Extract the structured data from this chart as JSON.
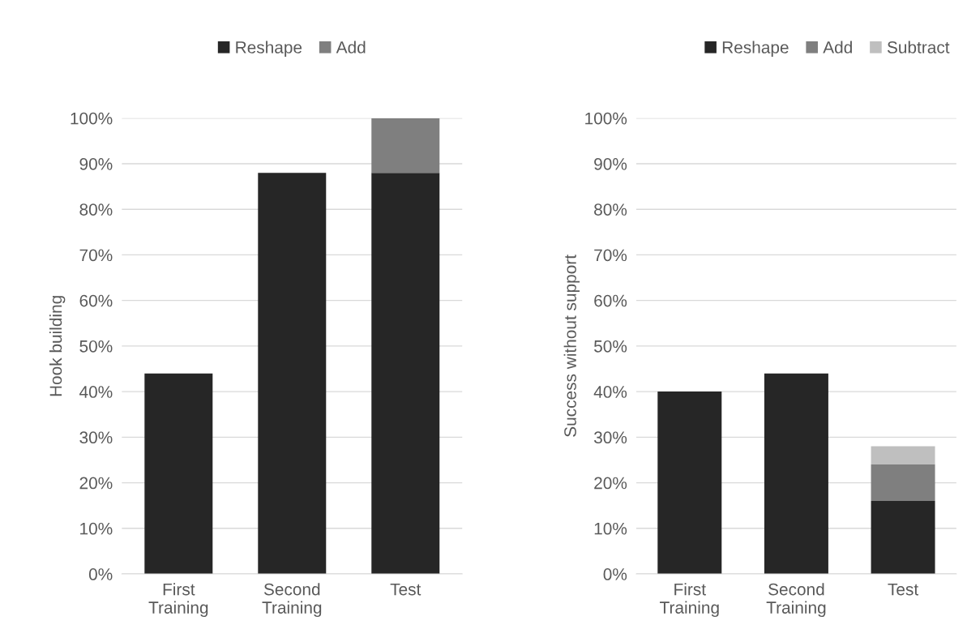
{
  "chart_data": [
    {
      "type": "bar",
      "stacked": true,
      "ylabel": "Hook building",
      "categories": [
        "First\nTraining",
        "Second\nTraining",
        "Test"
      ],
      "series": [
        {
          "name": "Reshape",
          "color": "#262626",
          "values": [
            44,
            88,
            88
          ]
        },
        {
          "name": "Add",
          "color": "#7f7f7f",
          "values": [
            null,
            null,
            12
          ]
        }
      ],
      "ylim": [
        0,
        100
      ],
      "yticks": [
        {
          "value": 0,
          "label": "0%"
        },
        {
          "value": 10,
          "label": "10%"
        },
        {
          "value": 20,
          "label": "20%"
        },
        {
          "value": 30,
          "label": "30%"
        },
        {
          "value": 40,
          "label": "40%"
        },
        {
          "value": 50,
          "label": "50%"
        },
        {
          "value": 60,
          "label": "60%"
        },
        {
          "value": 70,
          "label": "70%"
        },
        {
          "value": 80,
          "label": "80%"
        },
        {
          "value": 90,
          "label": "90%"
        },
        {
          "value": 100,
          "label": "100%"
        }
      ],
      "grid": "y",
      "legend": "top"
    },
    {
      "type": "bar",
      "stacked": true,
      "ylabel": "Success without support",
      "categories": [
        "First\nTraining",
        "Second\nTraining",
        "Test"
      ],
      "series": [
        {
          "name": "Reshape",
          "color": "#262626",
          "values": [
            40,
            44,
            16
          ]
        },
        {
          "name": "Add",
          "color": "#7f7f7f",
          "values": [
            null,
            null,
            8
          ]
        },
        {
          "name": "Subtract",
          "color": "#bfbfbf",
          "values": [
            null,
            null,
            4
          ]
        }
      ],
      "ylim": [
        0,
        100
      ],
      "yticks": [
        {
          "value": 0,
          "label": "0%"
        },
        {
          "value": 10,
          "label": "10%"
        },
        {
          "value": 20,
          "label": "20%"
        },
        {
          "value": 30,
          "label": "30%"
        },
        {
          "value": 40,
          "label": "40%"
        },
        {
          "value": 50,
          "label": "50%"
        },
        {
          "value": 60,
          "label": "60%"
        },
        {
          "value": 70,
          "label": "70%"
        },
        {
          "value": 80,
          "label": "80%"
        },
        {
          "value": 90,
          "label": "90%"
        },
        {
          "value": 100,
          "label": "100%"
        }
      ],
      "grid": "y",
      "legend": "top right"
    }
  ]
}
